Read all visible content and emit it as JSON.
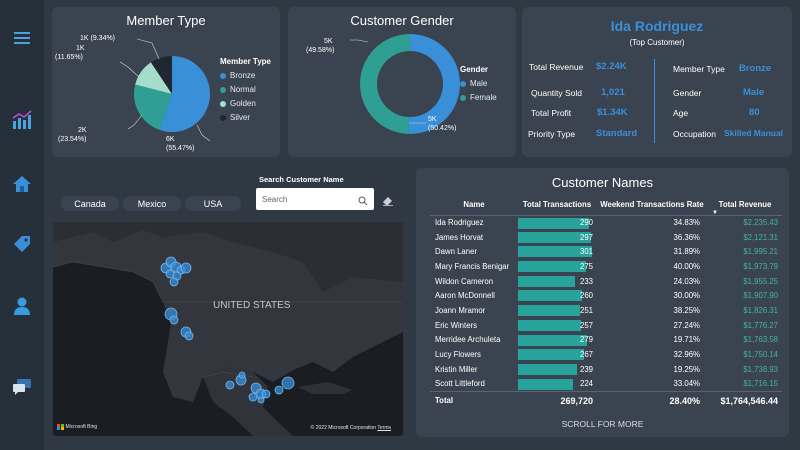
{
  "sidebar": {
    "icons": [
      "menu-icon",
      "analytics-icon",
      "home-icon",
      "tag-icon",
      "user-icon",
      "chat-icon"
    ]
  },
  "member_type": {
    "title": "Member Type",
    "legend_title": "Member Type",
    "legend": [
      {
        "name": "Bronze",
        "color": "#3a8fd9"
      },
      {
        "name": "Normal",
        "color": "#2f9e93"
      },
      {
        "name": "Golden",
        "color": "#a6dccb"
      },
      {
        "name": "Silver",
        "color": "#1f2730"
      }
    ],
    "labels": {
      "bronze": [
        "6K",
        "(55.47%)"
      ],
      "normal": [
        "2K",
        "(23.54%)"
      ],
      "golden": [
        "1K",
        "(11.65%)"
      ],
      "silver": "1K (9.34%)"
    }
  },
  "customer_gender": {
    "title": "Customer Gender",
    "legend_title": "Gender",
    "legend": [
      {
        "name": "Male",
        "color": "#3a8fd9"
      },
      {
        "name": "Female",
        "color": "#2f9e93"
      }
    ],
    "labels": {
      "female": [
        "5K",
        "(49.58%)"
      ],
      "male": [
        "5K",
        "(50.42%)"
      ]
    }
  },
  "chart_data": [
    {
      "type": "pie",
      "title": "Member Type",
      "categories": [
        "Bronze",
        "Normal",
        "Golden",
        "Silver"
      ],
      "values": [
        55.47,
        23.54,
        11.65,
        9.34
      ],
      "counts": [
        "6K",
        "2K",
        "1K",
        "1K"
      ],
      "legend": "right"
    },
    {
      "type": "pie",
      "title": "Customer Gender",
      "categories": [
        "Male",
        "Female"
      ],
      "values": [
        50.42,
        49.58
      ],
      "counts": [
        "5K",
        "5K"
      ],
      "legend": "right"
    }
  ],
  "top_customer": {
    "name": "Ida Rodriguez",
    "subtitle": "(Top Customer)",
    "left": [
      {
        "label": "Total Revenue",
        "value": "$2.24K"
      },
      {
        "label": "Quantity Sold",
        "value": "1,021"
      },
      {
        "label": "Total Profit",
        "value": "$1.34K"
      },
      {
        "label": "Priority Type",
        "value": "Standard"
      }
    ],
    "right": [
      {
        "label": "Member Type",
        "value": "Bronze"
      },
      {
        "label": "Gender",
        "value": "Male"
      },
      {
        "label": "Age",
        "value": "80"
      },
      {
        "label": "Occupation",
        "value": "Skilled Manual"
      }
    ]
  },
  "country_filters": [
    "Canada",
    "Mexico",
    "USA"
  ],
  "search": {
    "label": "Search Customer Name",
    "placeholder": "Search"
  },
  "map": {
    "region_label": "UNITED STATES",
    "brand": "Microsoft Bing",
    "copyright": "© 2022 Microsoft Corporation",
    "terms": "Terms"
  },
  "customers_table": {
    "title": "Customer Names",
    "columns": [
      "Name",
      "Total Transactions",
      "Weekend Transactions Rate",
      "Total Revenue"
    ],
    "max_transactions": 301,
    "rows": [
      {
        "name": "Ida Rodriguez",
        "transactions": 290,
        "rate": "34.83%",
        "revenue": "$2,235.43"
      },
      {
        "name": "James Horvat",
        "transactions": 297,
        "rate": "36.36%",
        "revenue": "$2,121.31"
      },
      {
        "name": "Dawn Laner",
        "transactions": 301,
        "rate": "31.89%",
        "revenue": "$1,995.21"
      },
      {
        "name": "Mary Francis Benigar",
        "transactions": 275,
        "rate": "40.00%",
        "revenue": "$1,973.79"
      },
      {
        "name": "Wildon Cameron",
        "transactions": 233,
        "rate": "24.03%",
        "revenue": "$1,955.25"
      },
      {
        "name": "Aaron McDonnell",
        "transactions": 260,
        "rate": "30.00%",
        "revenue": "$1,907.90"
      },
      {
        "name": "Joann Mramor",
        "transactions": 251,
        "rate": "38.25%",
        "revenue": "$1,826.31"
      },
      {
        "name": "Eric Winters",
        "transactions": 257,
        "rate": "27.24%",
        "revenue": "$1,776.27"
      },
      {
        "name": "Merridee Archuleta",
        "transactions": 279,
        "rate": "19.71%",
        "revenue": "$1,763.58"
      },
      {
        "name": "Lucy Flowers",
        "transactions": 267,
        "rate": "32.96%",
        "revenue": "$1,750.14"
      },
      {
        "name": "Kristin Miller",
        "transactions": 239,
        "rate": "19.25%",
        "revenue": "$1,738.93"
      },
      {
        "name": "Scott Littleford",
        "transactions": 224,
        "rate": "33.04%",
        "revenue": "$1,716.15"
      }
    ],
    "total": {
      "label": "Total",
      "transactions": "269,720",
      "rate": "28.40%",
      "revenue": "$1,764,546.44"
    },
    "scroll_hint": "SCROLL FOR MORE"
  }
}
